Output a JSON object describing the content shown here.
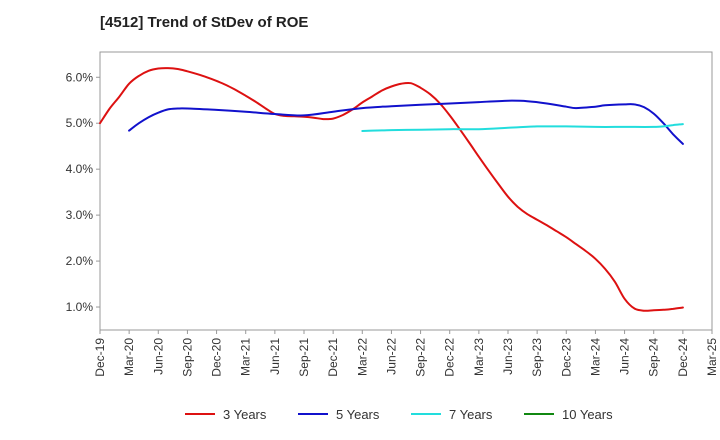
{
  "chart_data": {
    "type": "line",
    "title": "[4512]  Trend of StDev of ROE",
    "xlabel": "",
    "ylabel": "",
    "x_ticks": [
      "Dec-19",
      "Mar-20",
      "Jun-20",
      "Sep-20",
      "Dec-20",
      "Mar-21",
      "Jun-21",
      "Sep-21",
      "Dec-21",
      "Mar-22",
      "Jun-22",
      "Sep-22",
      "Dec-22",
      "Mar-23",
      "Jun-23",
      "Sep-23",
      "Dec-23",
      "Mar-24",
      "Jun-24",
      "Sep-24",
      "Dec-24",
      "Mar-25"
    ],
    "y_ticks": [
      "1.0%",
      "2.0%",
      "3.0%",
      "4.0%",
      "5.0%",
      "6.0%"
    ],
    "ylim": [
      0.005,
      0.0655
    ],
    "grid": true,
    "legend_position": "bottom",
    "series": [
      {
        "name": "3 Years",
        "color": "#dd1111",
        "points": [
          [
            "Dec-19",
            0.05
          ],
          [
            "Jan-20",
            0.0532
          ],
          [
            "Feb-20",
            0.0558
          ],
          [
            "Mar-20",
            0.0586
          ],
          [
            "Apr-20",
            0.0603
          ],
          [
            "May-20",
            0.0614
          ],
          [
            "Jun-20",
            0.0619
          ],
          [
            "Jul-20",
            0.062
          ],
          [
            "Aug-20",
            0.0618
          ],
          [
            "Sep-20",
            0.0613
          ],
          [
            "Oct-20",
            0.0607
          ],
          [
            "Nov-20",
            0.06
          ],
          [
            "Dec-20",
            0.0592
          ],
          [
            "Jan-21",
            0.0583
          ],
          [
            "Feb-21",
            0.0572
          ],
          [
            "Mar-21",
            0.056
          ],
          [
            "Apr-21",
            0.0547
          ],
          [
            "May-21",
            0.0533
          ],
          [
            "Jun-21",
            0.052
          ],
          [
            "Jul-21",
            0.0516
          ],
          [
            "Aug-21",
            0.0515
          ],
          [
            "Sep-21",
            0.0514
          ],
          [
            "Oct-21",
            0.0512
          ],
          [
            "Nov-21",
            0.0509
          ],
          [
            "Dec-21",
            0.051
          ],
          [
            "Jan-22",
            0.0518
          ],
          [
            "Feb-22",
            0.053
          ],
          [
            "Mar-22",
            0.0545
          ],
          [
            "Apr-22",
            0.0558
          ],
          [
            "May-22",
            0.0571
          ],
          [
            "Jun-22",
            0.058
          ],
          [
            "Jul-22",
            0.0586
          ],
          [
            "Aug-22",
            0.0587
          ],
          [
            "Sep-22",
            0.0577
          ],
          [
            "Oct-22",
            0.0563
          ],
          [
            "Nov-22",
            0.0543
          ],
          [
            "Dec-22",
            0.0517
          ],
          [
            "Jan-23",
            0.0488
          ],
          [
            "Feb-23",
            0.0458
          ],
          [
            "Mar-23",
            0.0427
          ],
          [
            "Apr-23",
            0.0397
          ],
          [
            "May-23",
            0.0368
          ],
          [
            "Jun-23",
            0.034
          ],
          [
            "Jul-23",
            0.0318
          ],
          [
            "Aug-23",
            0.0302
          ],
          [
            "Sep-23",
            0.029
          ],
          [
            "Oct-23",
            0.0278
          ],
          [
            "Nov-23",
            0.0265
          ],
          [
            "Dec-23",
            0.0252
          ],
          [
            "Jan-24",
            0.0237
          ],
          [
            "Feb-24",
            0.0222
          ],
          [
            "Mar-24",
            0.0205
          ],
          [
            "Apr-24",
            0.0183
          ],
          [
            "May-24",
            0.0155
          ],
          [
            "Jun-24",
            0.0118
          ],
          [
            "Jul-24",
            0.0097
          ],
          [
            "Aug-24",
            0.0092
          ],
          [
            "Sep-24",
            0.0093
          ],
          [
            "Oct-24",
            0.0094
          ],
          [
            "Nov-24",
            0.0096
          ],
          [
            "Dec-24",
            0.0099
          ]
        ]
      },
      {
        "name": "5 Years",
        "color": "#1111cc",
        "points": [
          [
            "Mar-20",
            0.0484
          ],
          [
            "Apr-20",
            0.05
          ],
          [
            "May-20",
            0.0513
          ],
          [
            "Jun-20",
            0.0523
          ],
          [
            "Jul-20",
            0.053
          ],
          [
            "Aug-20",
            0.0532
          ],
          [
            "Sep-20",
            0.0532
          ],
          [
            "Dec-20",
            0.0529
          ],
          [
            "Mar-21",
            0.0525
          ],
          [
            "Jun-21",
            0.052
          ],
          [
            "Sep-21",
            0.0517
          ],
          [
            "Dec-21",
            0.0525
          ],
          [
            "Mar-22",
            0.0533
          ],
          [
            "Jun-22",
            0.0537
          ],
          [
            "Sep-22",
            0.054
          ],
          [
            "Dec-22",
            0.0543
          ],
          [
            "Mar-23",
            0.0546
          ],
          [
            "Jun-23",
            0.0549
          ],
          [
            "Aug-23",
            0.0548
          ],
          [
            "Oct-23",
            0.0543
          ],
          [
            "Dec-23",
            0.0536
          ],
          [
            "Jan-24",
            0.0533
          ],
          [
            "Mar-24",
            0.0536
          ],
          [
            "Apr-24",
            0.0539
          ],
          [
            "Jun-24",
            0.0541
          ],
          [
            "Jul-24",
            0.0541
          ],
          [
            "Aug-24",
            0.0535
          ],
          [
            "Sep-24",
            0.0521
          ],
          [
            "Oct-24",
            0.05
          ],
          [
            "Nov-24",
            0.0476
          ],
          [
            "Dec-24",
            0.0455
          ]
        ]
      },
      {
        "name": "7 Years",
        "color": "#22dddd",
        "points": [
          [
            "Mar-22",
            0.0483
          ],
          [
            "Jun-22",
            0.0485
          ],
          [
            "Sep-22",
            0.0486
          ],
          [
            "Dec-22",
            0.0487
          ],
          [
            "Mar-23",
            0.0487
          ],
          [
            "Jun-23",
            0.049
          ],
          [
            "Sep-23",
            0.0493
          ],
          [
            "Dec-23",
            0.0493
          ],
          [
            "Mar-24",
            0.0492
          ],
          [
            "Jun-24",
            0.0492
          ],
          [
            "Sep-24",
            0.0492
          ],
          [
            "Oct-24",
            0.0493
          ],
          [
            "Nov-24",
            0.0496
          ],
          [
            "Dec-24",
            0.0498
          ]
        ]
      },
      {
        "name": "10 Years",
        "color": "#118811",
        "points": []
      }
    ]
  }
}
